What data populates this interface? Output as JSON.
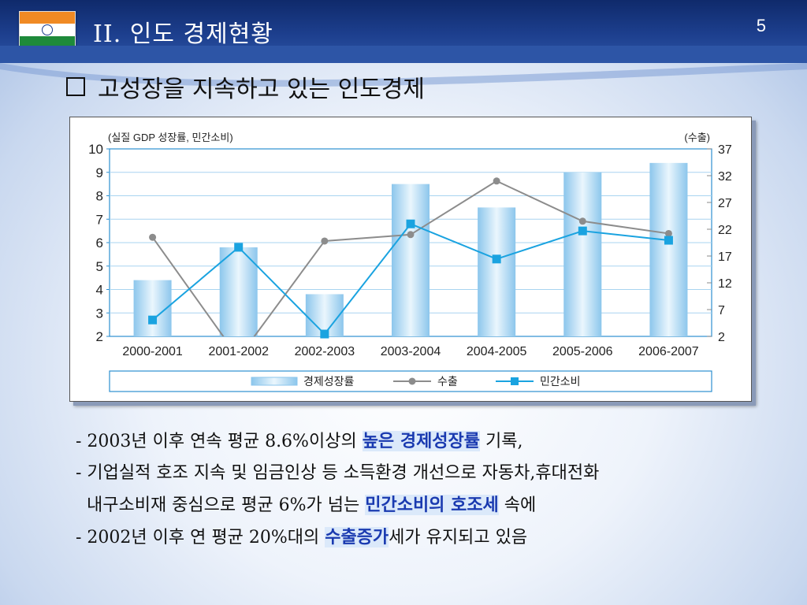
{
  "header": {
    "title": "II. 인도 경제현황",
    "page_number": "5",
    "flag_colors": [
      "#f08a24",
      "#ffffff",
      "#1e8a3a"
    ]
  },
  "subtitle": "고성장을 지속하고 있는 인도경제",
  "chart_data": {
    "type": "bar",
    "left_axis_title": "(실질 GDP 성장률, 민간소비)",
    "right_axis_title": "(수출)",
    "categories": [
      "2000-2001",
      "2001-2002",
      "2002-2003",
      "2003-2004",
      "2004-2005",
      "2005-2006",
      "2006-2007"
    ],
    "left_ticks": [
      "10",
      "9",
      "8",
      "7",
      "6",
      "5",
      "4",
      "3",
      "2"
    ],
    "right_ticks": [
      "37",
      "32",
      "27",
      "22",
      "17",
      "12",
      "7",
      "2"
    ],
    "ylim_left": [
      2,
      10
    ],
    "ylim_right": [
      2,
      37
    ],
    "grid": true,
    "legend_position": "bottom",
    "series": [
      {
        "name": "경제성장률",
        "kind": "bar",
        "axis": "left",
        "color": "#9fd0f0",
        "values": [
          4.4,
          5.8,
          3.8,
          8.5,
          7.5,
          9.0,
          9.4
        ]
      },
      {
        "name": "수출",
        "kind": "line",
        "axis": "right",
        "color": "#8c8c8c",
        "marker": "circle",
        "values": [
          20.5,
          -2,
          19.8,
          21.0,
          31.0,
          23.5,
          21.2
        ]
      },
      {
        "name": "민간소비",
        "kind": "line",
        "axis": "left",
        "color": "#1aa3e0",
        "marker": "square",
        "values": [
          2.7,
          5.8,
          2.1,
          6.8,
          5.3,
          6.5,
          6.1
        ]
      }
    ]
  },
  "bullets": [
    {
      "prefix": "- 2003년 이후 연속 평균 8.6%이상의 ",
      "highlight": "높은 경제성장률",
      "suffix": " 기록,"
    },
    {
      "prefix": "- 기업실적 호조 지속 및 임금인상 등 소득환경 개선으로 자동차,휴대전화",
      "highlight": "",
      "suffix": ""
    },
    {
      "prefix": "  내구소비재 중심으로 평균 6%가 넘는 ",
      "highlight": "민간소비의 호조세",
      "suffix": " 속에"
    },
    {
      "prefix": "- 2002년 이후 연 평균 20%대의 ",
      "highlight": "수출증가",
      "suffix": "세가 유지되고 있음"
    }
  ]
}
